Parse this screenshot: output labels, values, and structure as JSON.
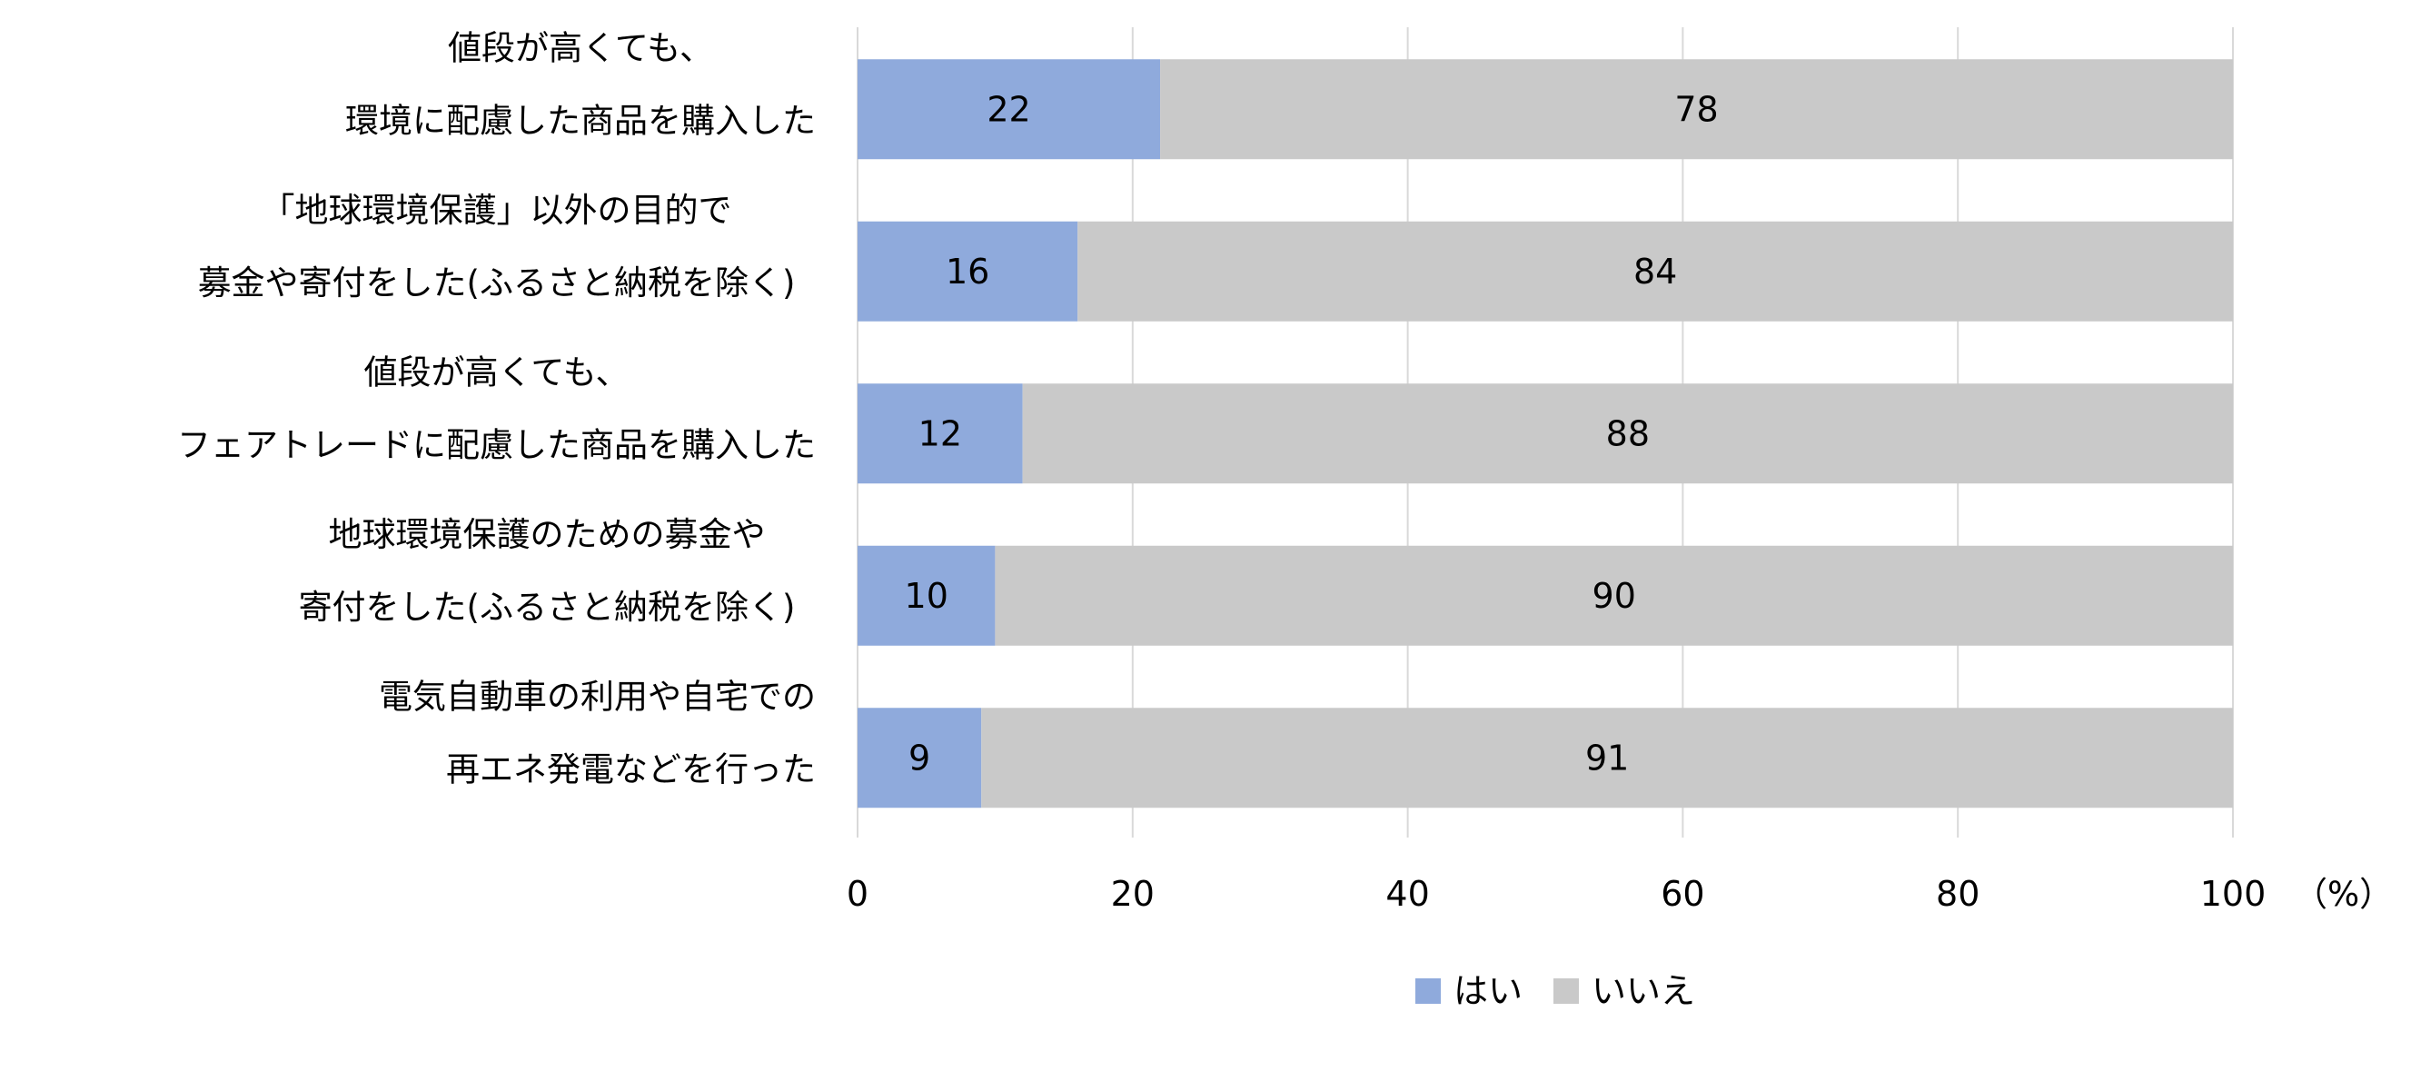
{
  "chart_data": {
    "type": "bar",
    "orientation": "horizontal",
    "stacked": true,
    "categories": [
      [
        "値段が高くても、",
        "環境に配慮した商品を購入した"
      ],
      [
        "「地球環境保護」以外の目的で",
        "募金や寄付をした(ふるさと納税を除く)"
      ],
      [
        "値段が高くても、",
        "フェアトレードに配慮した商品を購入した"
      ],
      [
        "地球環境保護のための募金や",
        "寄付をした(ふるさと納税を除く)"
      ],
      [
        "電気自動車の利用や自宅での",
        "再エネ発電などを行った"
      ]
    ],
    "series": [
      {
        "name": "はい",
        "values": [
          22,
          16,
          12,
          10,
          9
        ],
        "color": "#8faadc"
      },
      {
        "name": "いいえ",
        "values": [
          78,
          84,
          88,
          90,
          91
        ],
        "color": "#c9c9c9"
      }
    ],
    "xlim": [
      0,
      100
    ],
    "xticks": [
      "0",
      "20",
      "40",
      "60",
      "80",
      "100"
    ],
    "unit_label": "（%）",
    "grid": true,
    "legend_position": "bottom"
  }
}
